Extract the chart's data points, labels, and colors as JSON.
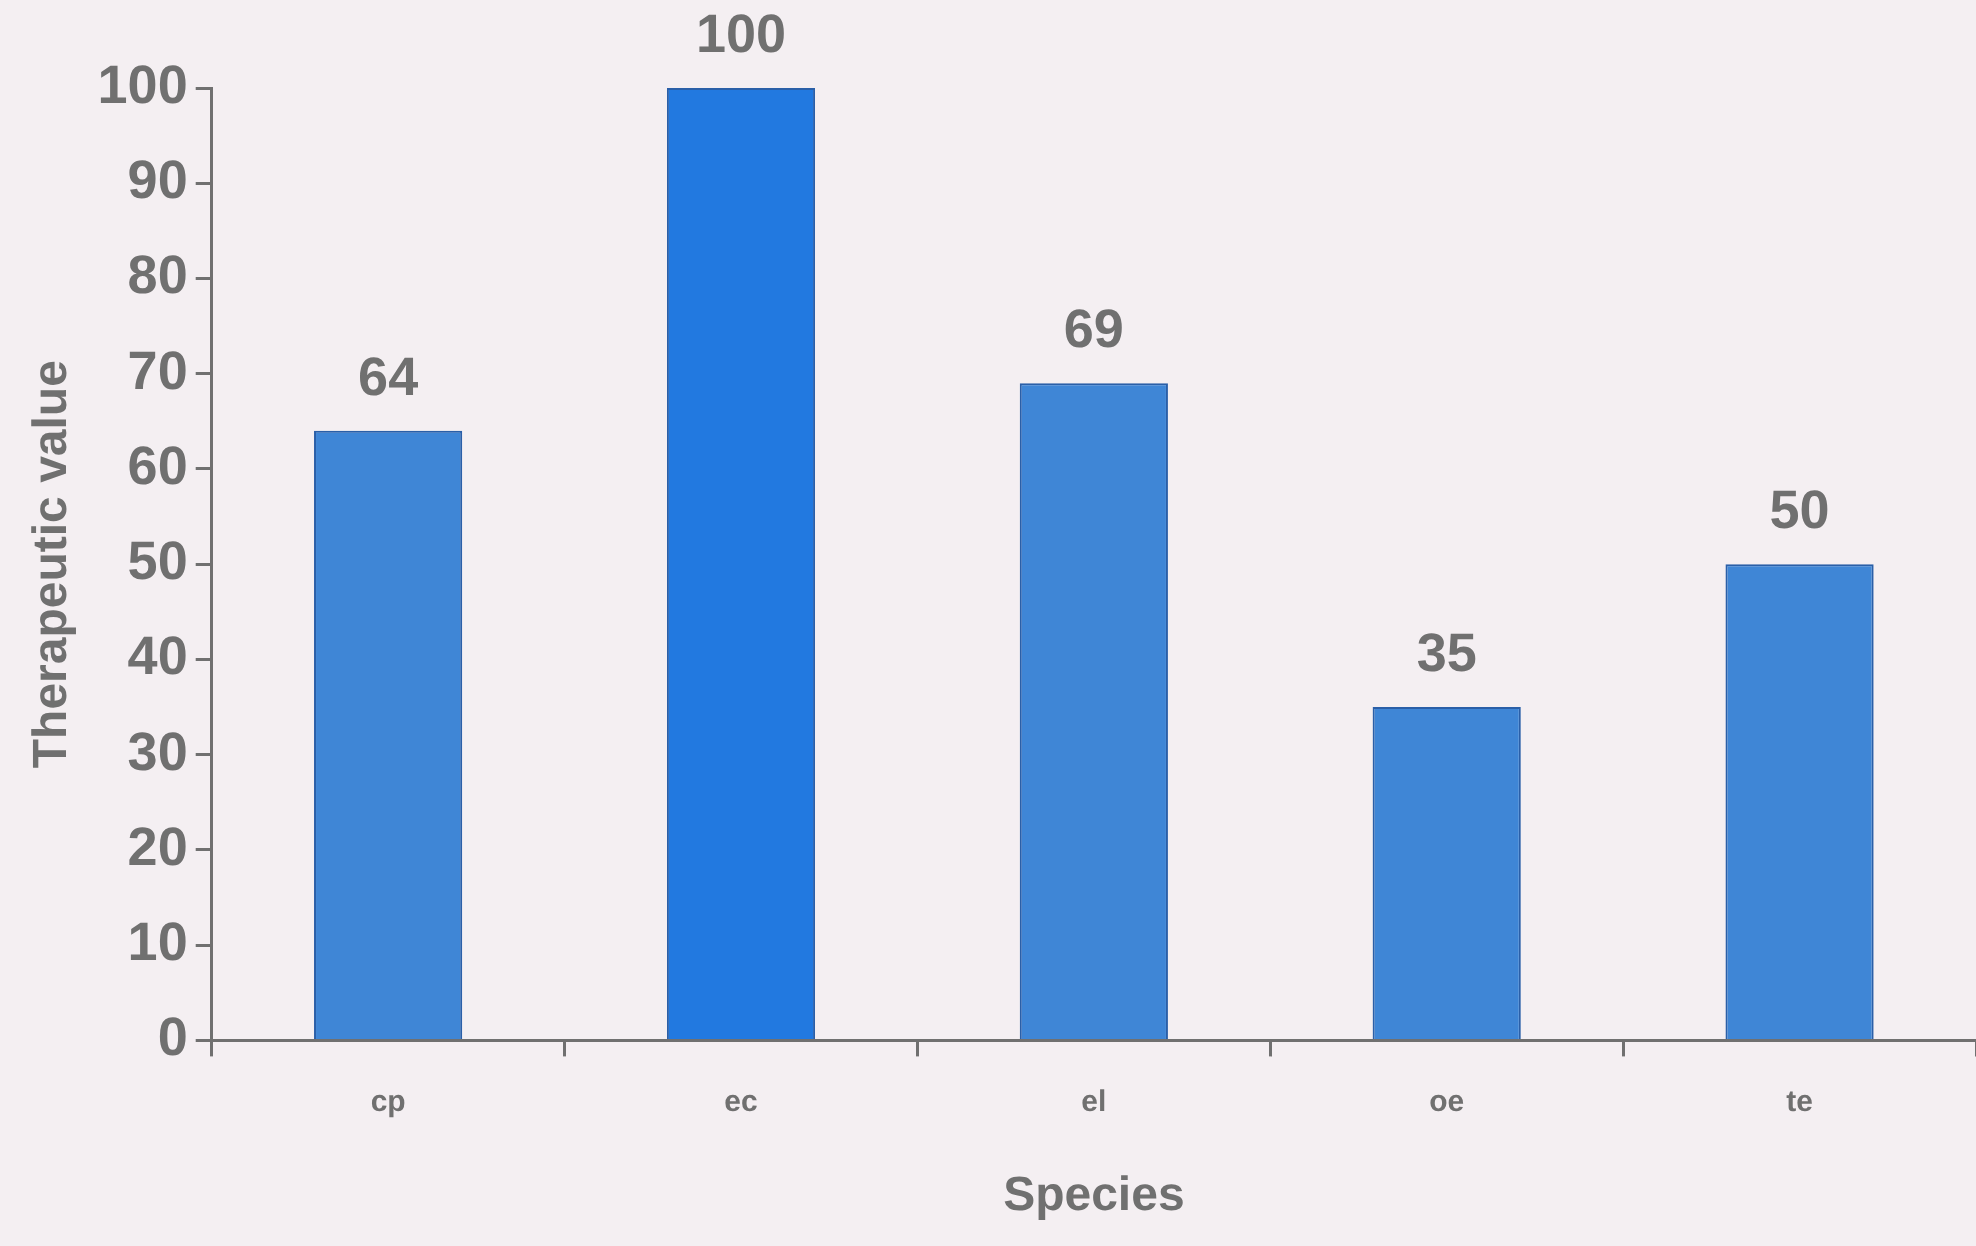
{
  "chart_data": {
    "type": "bar",
    "xlabel": "Species",
    "ylabel": "Therapeutic value",
    "categories": [
      "cp",
      "ec",
      "el",
      "oe",
      "te"
    ],
    "values": [
      64,
      100,
      69,
      35,
      50
    ],
    "colors": [
      "#3f86d6",
      "#2279e0",
      "#3f86d6",
      "#3f86d6",
      "#3f86d6"
    ],
    "ylim": [
      0,
      100
    ],
    "yticks": [
      0,
      10,
      20,
      30,
      40,
      50,
      60,
      70,
      80,
      90,
      100
    ],
    "data_labels": true,
    "grid": false,
    "legend": false
  }
}
